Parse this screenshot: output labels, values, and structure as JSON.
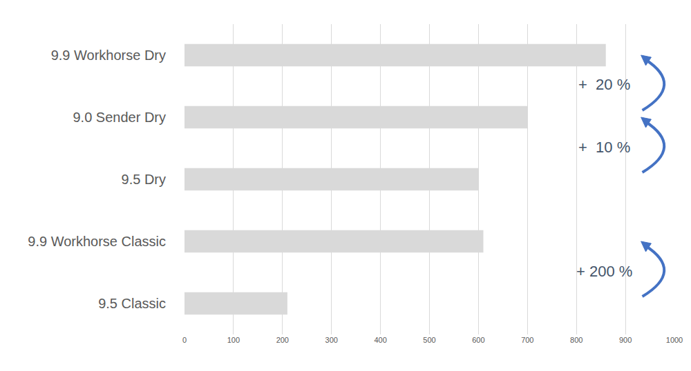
{
  "chart_data": {
    "type": "bar",
    "orientation": "horizontal",
    "categories": [
      "9.9 Workhorse Dry",
      "9.0 Sender Dry",
      "9.5 Dry",
      "9.9 Workhorse Classic",
      "9.5 Classic"
    ],
    "values": [
      860,
      700,
      600,
      610,
      210
    ],
    "color": "#d9d9d9",
    "xlim": [
      0,
      1000
    ],
    "xticks": [
      0,
      100,
      200,
      300,
      400,
      500,
      600,
      700,
      800,
      900,
      1000
    ],
    "grid": true,
    "annotations": [
      "+  20 %",
      "+  10 %",
      "+ 200 %"
    ]
  }
}
